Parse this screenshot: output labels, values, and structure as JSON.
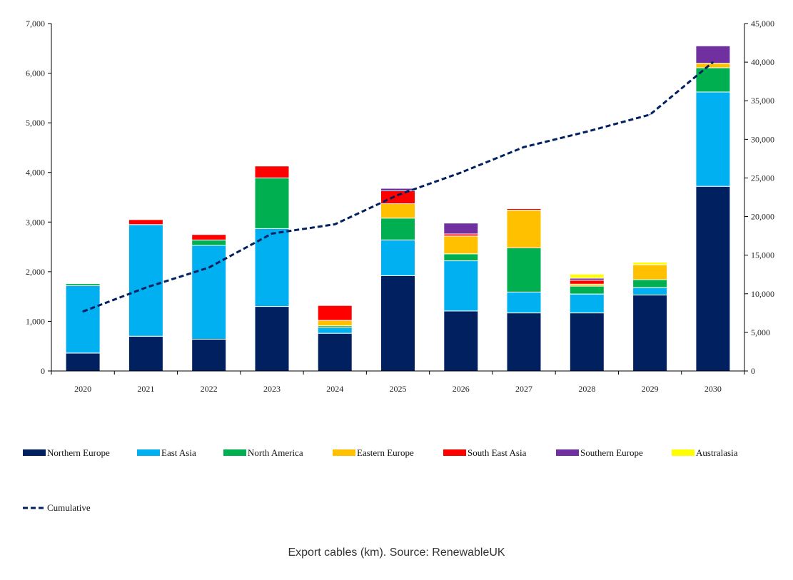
{
  "caption": "Export cables (km). Source: RenewableUK",
  "chart_data": {
    "type": "bar",
    "stacked": true,
    "categories": [
      "2020",
      "2021",
      "2022",
      "2023",
      "2024",
      "2025",
      "2026",
      "2027",
      "2028",
      "2029",
      "2030"
    ],
    "y_left": {
      "min": 0,
      "max": 7000,
      "ticks": [
        0,
        1000,
        2000,
        3000,
        4000,
        5000,
        6000,
        7000
      ],
      "tick_labels": [
        "0",
        "1,000",
        "2,000",
        "3,000",
        "4,000",
        "5,000",
        "6,000",
        "7,000"
      ]
    },
    "y_right": {
      "min": 0,
      "max": 45000,
      "ticks": [
        0,
        5000,
        10000,
        15000,
        20000,
        25000,
        30000,
        35000,
        40000,
        45000
      ],
      "tick_labels": [
        "0",
        "5,000",
        "10,000",
        "15,000",
        "20,000",
        "25,000",
        "30,000",
        "35,000",
        "40,000",
        "45,000"
      ]
    },
    "grid": false,
    "legend_position": "bottom",
    "series": [
      {
        "name": "Northern Europe",
        "color": "#002060",
        "values": [
          360,
          700,
          640,
          1300,
          760,
          1920,
          1210,
          1170,
          1170,
          1530,
          3720
        ]
      },
      {
        "name": "East Asia",
        "color": "#00B0F0",
        "values": [
          1360,
          2250,
          1890,
          1570,
          110,
          720,
          1010,
          420,
          380,
          150,
          1900
        ]
      },
      {
        "name": "North America",
        "color": "#00B050",
        "values": [
          40,
          0,
          110,
          1020,
          40,
          440,
          140,
          890,
          160,
          160,
          490
        ]
      },
      {
        "name": "Eastern Europe",
        "color": "#FFC000",
        "values": [
          0,
          0,
          0,
          0,
          110,
          290,
          360,
          760,
          40,
          300,
          90
        ]
      },
      {
        "name": "South East Asia",
        "color": "#FF0000",
        "values": [
          0,
          100,
          110,
          240,
          300,
          260,
          40,
          30,
          80,
          0,
          0
        ]
      },
      {
        "name": "Southern Europe",
        "color": "#7030A0",
        "values": [
          0,
          0,
          0,
          0,
          0,
          50,
          220,
          0,
          40,
          0,
          350
        ]
      },
      {
        "name": "Australasia",
        "color": "#FFFF00",
        "values": [
          0,
          0,
          0,
          0,
          0,
          0,
          0,
          0,
          80,
          50,
          0
        ]
      }
    ],
    "line_series": {
      "name": "Cumulative",
      "color": "#002060",
      "axis": "right",
      "style": "dashed",
      "values": [
        7700,
        10800,
        13400,
        17800,
        19000,
        22800,
        25700,
        29000,
        31000,
        33200,
        40000
      ]
    }
  }
}
